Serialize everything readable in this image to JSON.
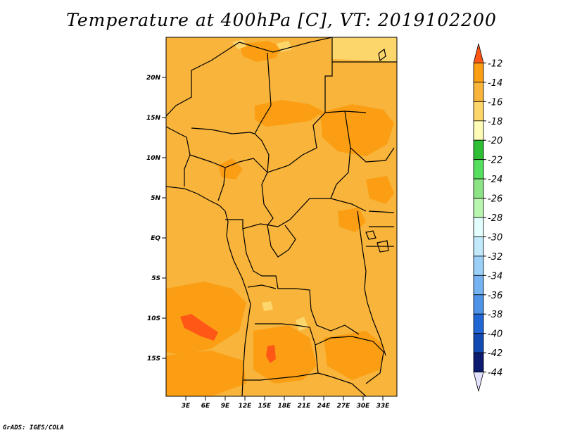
{
  "title": "Temperature at 400hPa [C], VT: 2019102200",
  "credit": "GrADS: IGES/COLA",
  "map": {
    "lon_range": [
      0,
      35
    ],
    "lat_range": [
      -20,
      25
    ],
    "lat_ticks": [
      "20N",
      "15N",
      "10N",
      "5N",
      "EQ",
      "5S",
      "10S",
      "15S"
    ],
    "lon_ticks": [
      "3E",
      "6E",
      "9E",
      "12E",
      "15E",
      "18E",
      "21E",
      "24E",
      "27E",
      "30E",
      "33E"
    ],
    "base_color": "#f8b43b"
  },
  "colorbar": {
    "levels": [
      "-12",
      "-14",
      "-16",
      "-18",
      "-20",
      "-22",
      "-24",
      "-26",
      "-28",
      "-30",
      "-32",
      "-34",
      "-36",
      "-38",
      "-40",
      "-42",
      "-44"
    ],
    "colors": [
      "#fe5716",
      "#fb9e13",
      "#f8b43b",
      "#fcd56b",
      "#fefcb6",
      "#2dbe34",
      "#56de5e",
      "#8de487",
      "#b8f6b0",
      "#e3fefe",
      "#c2e8fb",
      "#9ad0f7",
      "#74b2f2",
      "#4d93e8",
      "#2166d5",
      "#124ab3",
      "#0c1a6f",
      "#e2e2ff"
    ]
  }
}
